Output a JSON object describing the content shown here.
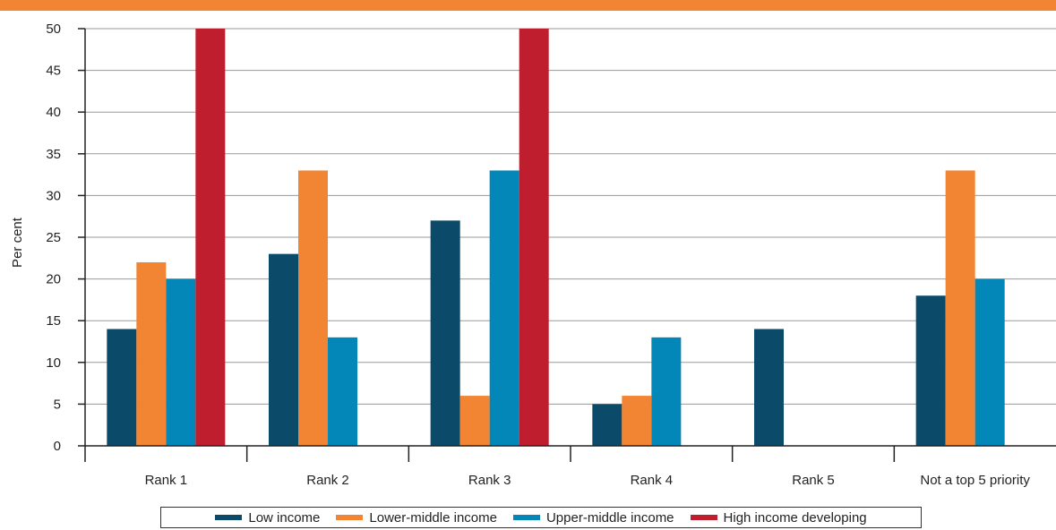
{
  "colors": {
    "top_bar": "#f28534",
    "low_income": "#0b4b69",
    "lower_middle_income": "#f28534",
    "upper_middle_income": "#0287b8",
    "high_income_developing": "#be1e2d"
  },
  "chart_data": {
    "type": "bar",
    "title": "",
    "xlabel": "",
    "ylabel": "Per cent",
    "ylim": [
      0,
      50
    ],
    "yticks": [
      0,
      5,
      10,
      15,
      20,
      25,
      30,
      35,
      40,
      45,
      50
    ],
    "grid": true,
    "legend_position": "bottom",
    "categories": [
      "Rank 1",
      "Rank 2",
      "Rank 3",
      "Rank 4",
      "Rank 5",
      "Not a top 5 priority"
    ],
    "series": [
      {
        "name": "Low income",
        "values": [
          14,
          23,
          27,
          5,
          14,
          18
        ]
      },
      {
        "name": "Lower-middle income",
        "values": [
          22,
          33,
          6,
          6,
          0,
          33
        ]
      },
      {
        "name": "Upper-middle income",
        "values": [
          20,
          13,
          33,
          13,
          0,
          20
        ]
      },
      {
        "name": "High income developing",
        "values": [
          50,
          0,
          50,
          0,
          0,
          0
        ]
      }
    ]
  }
}
